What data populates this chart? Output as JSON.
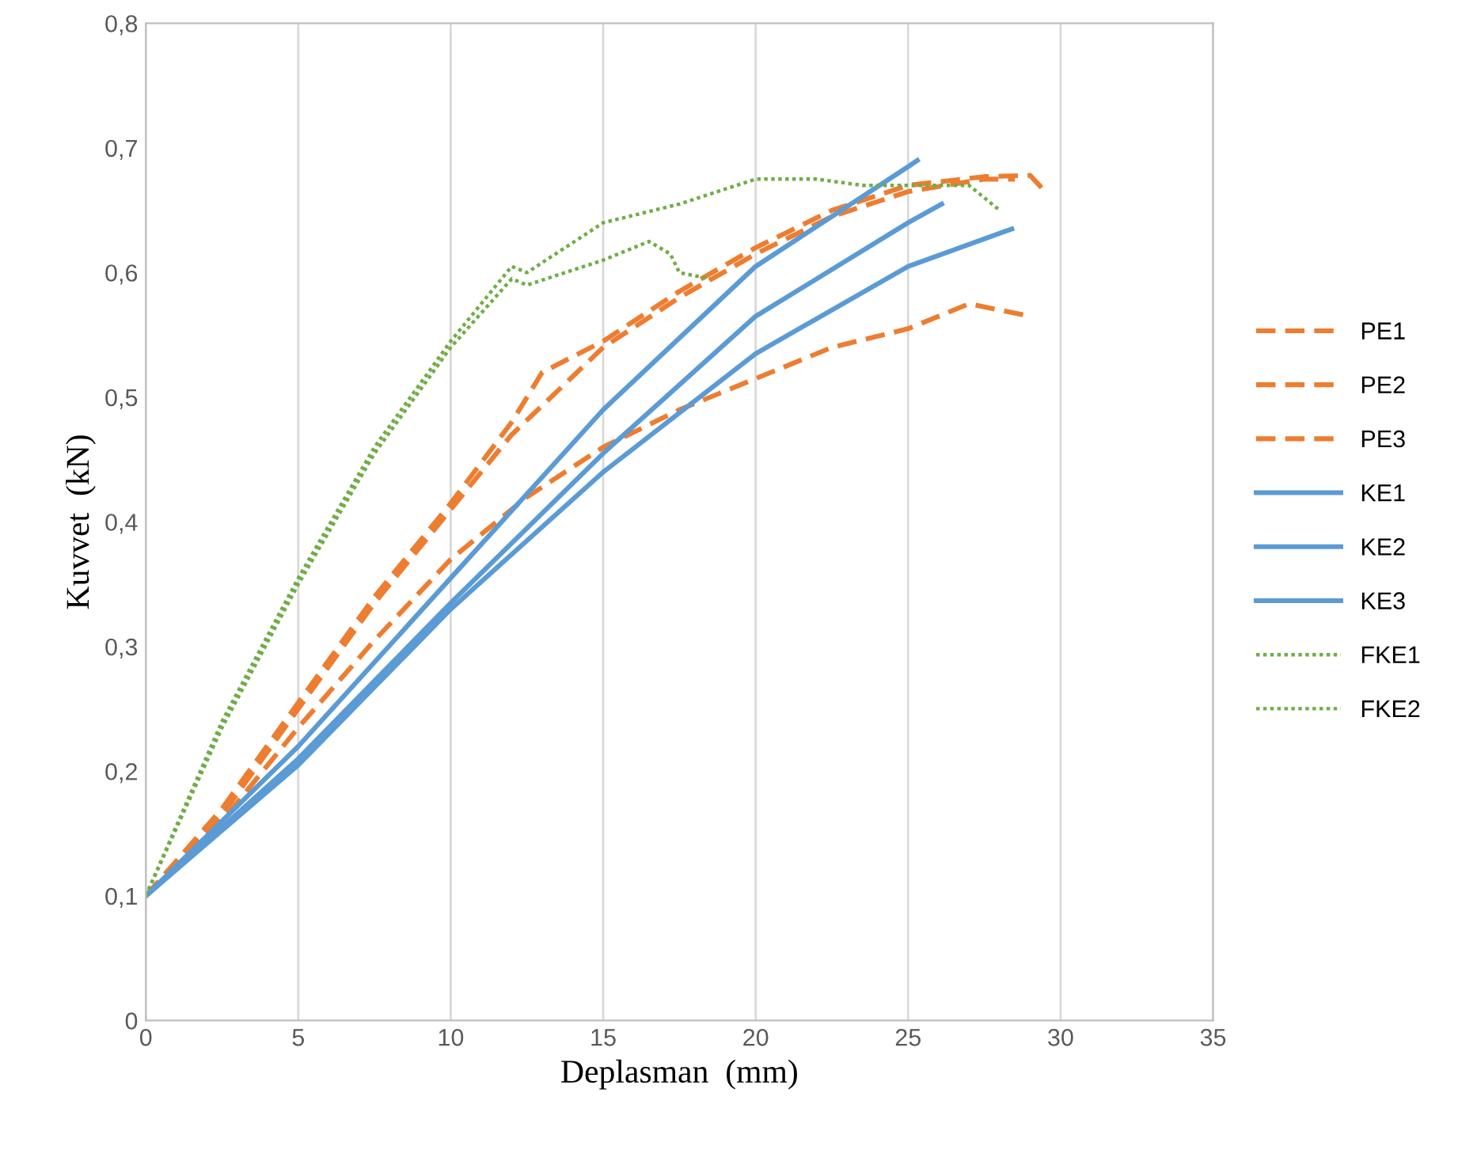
{
  "chart_data": {
    "type": "line",
    "xlabel": "Deplasman  (mm)",
    "ylabel": "Kuvvet  (kN)",
    "xlim": [
      0,
      35
    ],
    "ylim": [
      0,
      0.8
    ],
    "xticks": [
      0,
      5,
      10,
      15,
      20,
      25,
      30,
      35
    ],
    "yticks": [
      {
        "value": 0,
        "label": "0"
      },
      {
        "value": 0.1,
        "label": "0,1"
      },
      {
        "value": 0.2,
        "label": "0,2"
      },
      {
        "value": 0.3,
        "label": "0,3"
      },
      {
        "value": 0.4,
        "label": "0,4"
      },
      {
        "value": 0.5,
        "label": "0,5"
      },
      {
        "value": 0.6,
        "label": "0,6"
      },
      {
        "value": 0.7,
        "label": "0,7"
      },
      {
        "value": 0.8,
        "label": "0,8"
      }
    ],
    "grid": "x",
    "legend": "right",
    "marker": "none",
    "series": [
      {
        "name": "PE1",
        "color": "#ed7d31",
        "line_style": "dashed",
        "x": [
          0,
          2.5,
          5,
          7.5,
          10,
          12,
          13,
          15,
          17.5,
          20,
          22.5,
          25,
          27.5,
          29,
          29.5
        ],
        "values": [
          0.1,
          0.17,
          0.255,
          0.34,
          0.415,
          0.48,
          0.52,
          0.545,
          0.585,
          0.62,
          0.65,
          0.67,
          0.677,
          0.678,
          0.665
        ]
      },
      {
        "name": "PE2",
        "color": "#ed7d31",
        "line_style": "dashed",
        "x": [
          0,
          2.5,
          5,
          7.5,
          10,
          12,
          15,
          17.5,
          20,
          22.5,
          25,
          27.5,
          28.5
        ],
        "values": [
          0.1,
          0.165,
          0.25,
          0.335,
          0.41,
          0.47,
          0.54,
          0.58,
          0.615,
          0.645,
          0.665,
          0.675,
          0.675
        ]
      },
      {
        "name": "PE3",
        "color": "#ed7d31",
        "line_style": "dashed",
        "x": [
          0,
          2.5,
          5,
          7.5,
          10,
          12.5,
          15,
          17.5,
          20,
          22.5,
          25,
          26,
          27,
          28,
          29
        ],
        "values": [
          0.1,
          0.16,
          0.235,
          0.305,
          0.37,
          0.42,
          0.46,
          0.49,
          0.515,
          0.54,
          0.555,
          0.565,
          0.575,
          0.57,
          0.565
        ]
      },
      {
        "name": "KE1",
        "color": "#5b9bd5",
        "line_style": "solid",
        "x": [
          0,
          5,
          10,
          15,
          20,
          25,
          25.3
        ],
        "values": [
          0.1,
          0.22,
          0.355,
          0.49,
          0.605,
          0.685,
          0.69
        ]
      },
      {
        "name": "KE2",
        "color": "#5b9bd5",
        "line_style": "solid",
        "x": [
          0,
          5,
          10,
          15,
          20,
          25,
          26.1
        ],
        "values": [
          0.1,
          0.21,
          0.335,
          0.455,
          0.565,
          0.64,
          0.655
        ]
      },
      {
        "name": "KE3",
        "color": "#5b9bd5",
        "line_style": "solid",
        "x": [
          0,
          5,
          10,
          15,
          20,
          25,
          28.4
        ],
        "values": [
          0.1,
          0.205,
          0.33,
          0.44,
          0.535,
          0.605,
          0.635
        ]
      },
      {
        "name": "FKE1",
        "color": "#70ad47",
        "line_style": "dotted",
        "x": [
          0,
          2.5,
          5,
          7.5,
          10,
          12,
          12.5,
          15,
          17.5,
          20,
          22,
          23.5,
          26,
          27,
          28
        ],
        "values": [
          0.1,
          0.24,
          0.355,
          0.46,
          0.545,
          0.605,
          0.6,
          0.64,
          0.655,
          0.675,
          0.675,
          0.67,
          0.67,
          0.67,
          0.65
        ]
      },
      {
        "name": "FKE2",
        "color": "#70ad47",
        "line_style": "dotted",
        "x": [
          0,
          2.5,
          5,
          7.5,
          10,
          12,
          12.5,
          15,
          16.5,
          17.2,
          17.5,
          18.5
        ],
        "values": [
          0.1,
          0.235,
          0.35,
          0.455,
          0.54,
          0.595,
          0.59,
          0.61,
          0.625,
          0.615,
          0.6,
          0.595
        ]
      }
    ]
  }
}
